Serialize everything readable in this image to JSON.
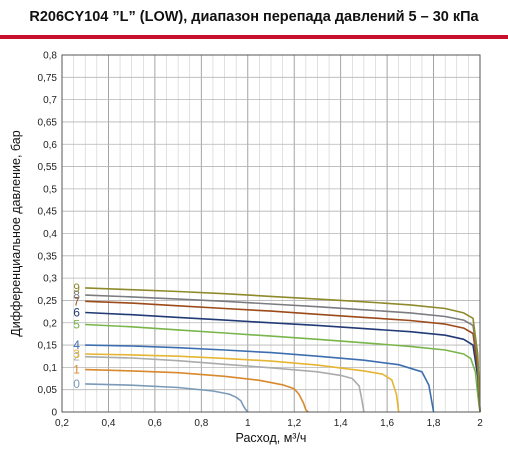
{
  "title": "R206CY104 ”L” (LOW), диапазон перепада давлений 5 – 30 кПа",
  "chart_data": {
    "type": "line",
    "title": "R206CY104 ”L” (LOW), диапазон перепада давлений 5 – 30 кПа",
    "xlabel": "Расход, м³/ч",
    "ylabel": "Дифференциальное давление, бар",
    "xlim": [
      0.2,
      2
    ],
    "ylim": [
      0,
      0.8
    ],
    "x_ticks": [
      "0,2",
      "0,4",
      "0,6",
      "0,8",
      "1",
      "1,2",
      "1,4",
      "1,6",
      "1,8",
      "2"
    ],
    "y_ticks": [
      "0",
      "0,05",
      "0,1",
      "0,15",
      "0,2",
      "0,25",
      "0,3",
      "0,35",
      "0,4",
      "0,45",
      "0,5",
      "0,55",
      "0,6",
      "0,65",
      "0,7",
      "0,75",
      "0,8"
    ],
    "grid": true,
    "series": [
      {
        "name": "0",
        "color": "#7b9ab8",
        "x": [
          0.3,
          0.5,
          0.7,
          0.85,
          0.92,
          0.95,
          0.97,
          0.98,
          0.99,
          1.0
        ],
        "y": [
          0.063,
          0.06,
          0.055,
          0.047,
          0.04,
          0.033,
          0.025,
          0.015,
          0.006,
          0.0
        ]
      },
      {
        "name": "1",
        "color": "#d8892d",
        "x": [
          0.3,
          0.5,
          0.7,
          0.9,
          1.05,
          1.15,
          1.2,
          1.22,
          1.24,
          1.25,
          1.26
        ],
        "y": [
          0.095,
          0.092,
          0.088,
          0.08,
          0.071,
          0.061,
          0.052,
          0.04,
          0.02,
          0.005,
          0.0
        ]
      },
      {
        "name": "2",
        "color": "#a9abad",
        "x": [
          0.3,
          0.5,
          0.7,
          0.9,
          1.1,
          1.3,
          1.4,
          1.45,
          1.48,
          1.49,
          1.5
        ],
        "y": [
          0.124,
          0.121,
          0.115,
          0.107,
          0.099,
          0.09,
          0.082,
          0.075,
          0.058,
          0.03,
          0.0
        ]
      },
      {
        "name": "3",
        "color": "#e5b533",
        "x": [
          0.3,
          0.5,
          0.7,
          0.9,
          1.1,
          1.3,
          1.5,
          1.58,
          1.62,
          1.64,
          1.65
        ],
        "y": [
          0.13,
          0.128,
          0.125,
          0.12,
          0.114,
          0.105,
          0.092,
          0.085,
          0.072,
          0.04,
          0.0
        ]
      },
      {
        "name": "4",
        "color": "#3d6fb0",
        "x": [
          0.3,
          0.5,
          0.7,
          0.9,
          1.1,
          1.3,
          1.5,
          1.65,
          1.75,
          1.78,
          1.8
        ],
        "y": [
          0.15,
          0.148,
          0.144,
          0.139,
          0.133,
          0.125,
          0.116,
          0.106,
          0.09,
          0.06,
          0.0
        ]
      },
      {
        "name": "5",
        "color": "#79b54b",
        "x": [
          0.3,
          0.5,
          0.7,
          0.9,
          1.1,
          1.3,
          1.5,
          1.7,
          1.85,
          1.93,
          1.96,
          1.98,
          1.99,
          2.0
        ],
        "y": [
          0.196,
          0.191,
          0.184,
          0.177,
          0.17,
          0.163,
          0.155,
          0.147,
          0.139,
          0.13,
          0.12,
          0.09,
          0.04,
          0.0
        ]
      },
      {
        "name": "6",
        "color": "#223a76",
        "x": [
          0.3,
          0.5,
          0.7,
          0.9,
          1.1,
          1.3,
          1.5,
          1.7,
          1.85,
          1.93,
          1.97,
          1.99,
          2.0
        ],
        "y": [
          0.223,
          0.218,
          0.212,
          0.206,
          0.2,
          0.194,
          0.187,
          0.18,
          0.172,
          0.163,
          0.15,
          0.08,
          0.0
        ]
      },
      {
        "name": "7",
        "color": "#9c4a1a",
        "x": [
          0.3,
          0.5,
          0.7,
          0.9,
          1.1,
          1.3,
          1.5,
          1.7,
          1.85,
          1.93,
          1.97,
          1.99,
          2.0
        ],
        "y": [
          0.248,
          0.244,
          0.238,
          0.232,
          0.226,
          0.219,
          0.212,
          0.205,
          0.197,
          0.188,
          0.176,
          0.1,
          0.0
        ]
      },
      {
        "name": "8",
        "color": "#7a7c80",
        "x": [
          0.3,
          0.5,
          0.7,
          0.9,
          1.1,
          1.3,
          1.5,
          1.7,
          1.85,
          1.93,
          1.97,
          1.99,
          2.0
        ],
        "y": [
          0.262,
          0.258,
          0.253,
          0.248,
          0.242,
          0.236,
          0.229,
          0.222,
          0.214,
          0.206,
          0.194,
          0.12,
          0.0
        ]
      },
      {
        "name": "9",
        "color": "#8e8a2c",
        "x": [
          0.3,
          0.5,
          0.7,
          0.9,
          1.1,
          1.3,
          1.5,
          1.7,
          1.85,
          1.93,
          1.97,
          1.99,
          2.0
        ],
        "y": [
          0.278,
          0.274,
          0.27,
          0.265,
          0.259,
          0.253,
          0.247,
          0.24,
          0.232,
          0.222,
          0.21,
          0.13,
          0.0
        ]
      }
    ]
  }
}
